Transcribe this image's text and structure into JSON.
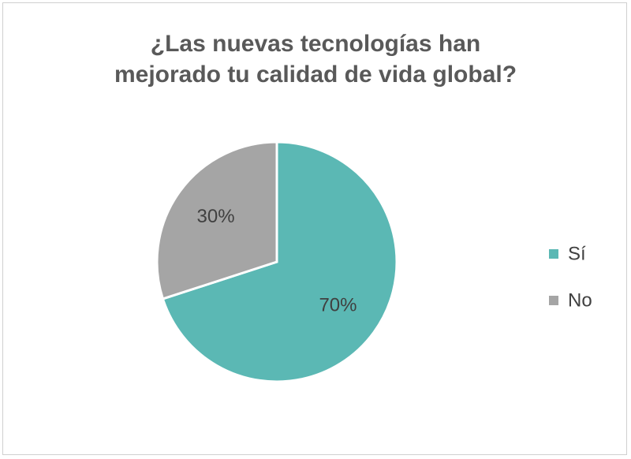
{
  "chart_data": {
    "type": "pie",
    "title": "¿Las nuevas tecnologías han mejorado tu calidad de vida global?",
    "categories": [
      "Sí",
      "No"
    ],
    "values": [
      70,
      30
    ],
    "value_labels": [
      "70%",
      "30%"
    ],
    "colors": [
      "#5bb8b4",
      "#a5a5a5"
    ],
    "legend": "right"
  }
}
